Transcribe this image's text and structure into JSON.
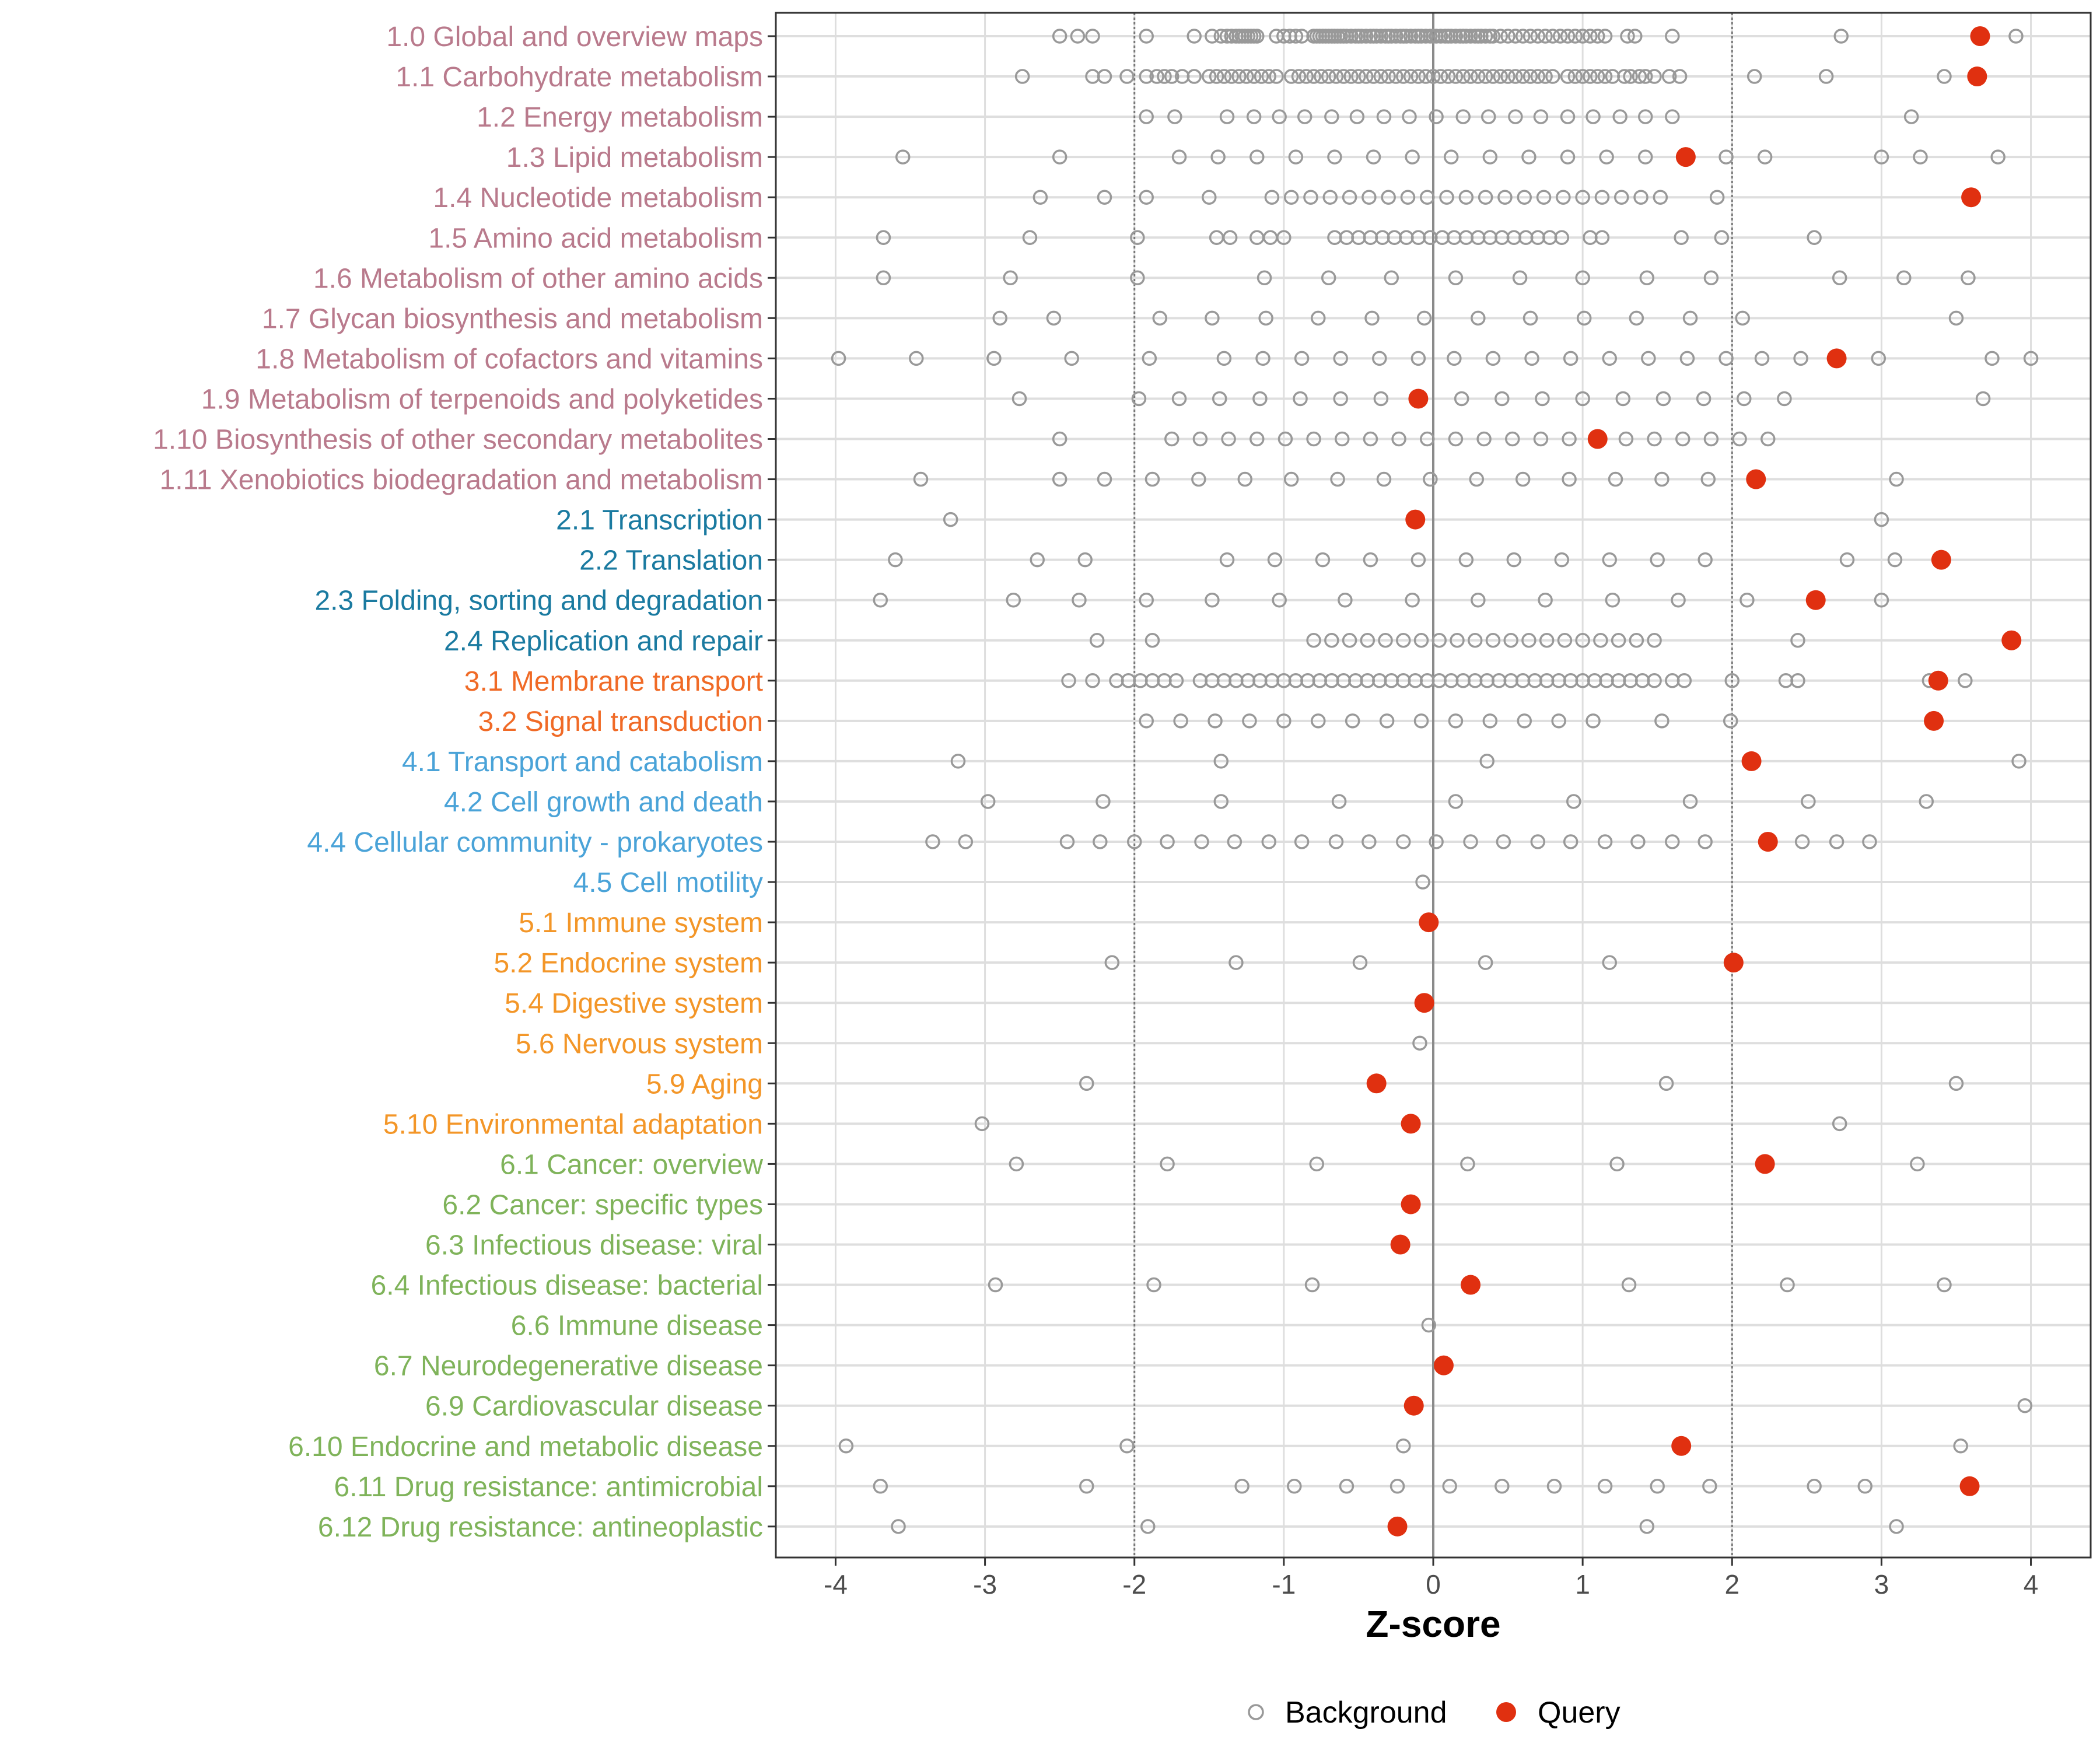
{
  "chart_data": {
    "type": "scatter",
    "xlabel": "Z-score",
    "xlim": [
      -4.4,
      4.4
    ],
    "x_ticks": [
      -4,
      -3,
      -2,
      -1,
      0,
      1,
      2,
      3,
      4
    ],
    "x_tick_labels": [
      "-4",
      "-3",
      "-2",
      "-1",
      "0",
      "1",
      "2",
      "3",
      "4"
    ],
    "reference_lines": {
      "zero": 0,
      "thresholds": [
        -2,
        2
      ]
    },
    "legend": {
      "position": "bottom",
      "entries": [
        "Background",
        "Query"
      ]
    },
    "colors": {
      "background_point": "#999999",
      "query_point": "#e03010",
      "grid": "#dedede",
      "metabolism": "#b97a8c",
      "genetic": "#1a7aa0",
      "environmental": "#f06a26",
      "cellular": "#4aa3d8",
      "organismal": "#f39628",
      "human_disease": "#7fb35a"
    },
    "categories": [
      {
        "label": "1.0 Global and overview maps",
        "group": "metabolism",
        "query": 3.66,
        "background": [
          -2.5,
          -2.38,
          -2.28,
          -1.92,
          -1.6,
          -1.48,
          -1.42,
          -1.38,
          -1.35,
          -1.32,
          -1.3,
          -1.28,
          -1.26,
          -1.24,
          -1.22,
          -1.2,
          -1.18,
          -1.05,
          -1.0,
          -0.96,
          -0.92,
          -0.88,
          -0.8,
          -0.78,
          -0.76,
          -0.74,
          -0.72,
          -0.7,
          -0.68,
          -0.66,
          -0.64,
          -0.62,
          -0.6,
          -0.58,
          -0.55,
          -0.52,
          -0.5,
          -0.48,
          -0.45,
          -0.42,
          -0.4,
          -0.38,
          -0.35,
          -0.32,
          -0.3,
          -0.28,
          -0.25,
          -0.22,
          -0.2,
          -0.18,
          -0.15,
          -0.12,
          -0.1,
          -0.08,
          -0.05,
          -0.02,
          0.0,
          0.02,
          0.05,
          0.08,
          0.1,
          0.12,
          0.15,
          0.18,
          0.2,
          0.22,
          0.25,
          0.28,
          0.3,
          0.32,
          0.35,
          0.38,
          0.4,
          0.45,
          0.5,
          0.55,
          0.6,
          0.65,
          0.7,
          0.75,
          0.8,
          0.85,
          0.9,
          0.95,
          1.0,
          1.05,
          1.1,
          1.15,
          1.3,
          1.35,
          1.6,
          2.73,
          3.9
        ]
      },
      {
        "label": "1.1 Carbohydrate metabolism",
        "group": "metabolism",
        "query": 3.64,
        "background": [
          -2.75,
          -2.28,
          -2.2,
          -2.05,
          -1.92,
          -1.85,
          -1.8,
          -1.75,
          -1.68,
          -1.6,
          -1.5,
          -1.45,
          -1.4,
          -1.35,
          -1.3,
          -1.25,
          -1.2,
          -1.15,
          -1.1,
          -1.05,
          -0.95,
          -0.9,
          -0.85,
          -0.8,
          -0.75,
          -0.7,
          -0.65,
          -0.6,
          -0.55,
          -0.5,
          -0.45,
          -0.4,
          -0.35,
          -0.3,
          -0.25,
          -0.2,
          -0.15,
          -0.1,
          -0.05,
          0.0,
          0.05,
          0.1,
          0.15,
          0.2,
          0.25,
          0.3,
          0.35,
          0.4,
          0.45,
          0.5,
          0.55,
          0.6,
          0.65,
          0.7,
          0.75,
          0.8,
          0.9,
          0.95,
          1.0,
          1.05,
          1.1,
          1.15,
          1.2,
          1.28,
          1.32,
          1.38,
          1.42,
          1.48,
          1.58,
          1.65,
          2.15,
          2.63,
          3.42
        ]
      },
      {
        "label": "1.2 Energy metabolism",
        "group": "metabolism",
        "query": null,
        "background": [
          -1.92,
          -1.73,
          -1.38,
          -1.2,
          -1.03,
          -0.86,
          -0.68,
          -0.51,
          -0.33,
          -0.16,
          0.02,
          0.2,
          0.37,
          0.55,
          0.72,
          0.9,
          1.07,
          1.25,
          1.42,
          1.6,
          3.2
        ]
      },
      {
        "label": "1.3 Lipid metabolism",
        "group": "metabolism",
        "query": 1.69,
        "background": [
          -3.55,
          -2.5,
          -1.7,
          -1.44,
          -1.18,
          -0.92,
          -0.66,
          -0.4,
          -0.14,
          0.12,
          0.38,
          0.64,
          0.9,
          1.16,
          1.42,
          1.96,
          2.22,
          3.0,
          3.26,
          3.78
        ]
      },
      {
        "label": "1.4 Nucleotide metabolism",
        "group": "metabolism",
        "query": 3.6,
        "background": [
          -2.63,
          -2.2,
          -1.92,
          -1.5,
          -1.08,
          -0.95,
          -0.82,
          -0.69,
          -0.56,
          -0.43,
          -0.3,
          -0.17,
          -0.04,
          0.09,
          0.22,
          0.35,
          0.48,
          0.61,
          0.74,
          0.87,
          1.0,
          1.13,
          1.26,
          1.39,
          1.52,
          1.9
        ]
      },
      {
        "label": "1.5 Amino acid metabolism",
        "group": "metabolism",
        "query": null,
        "background": [
          -3.68,
          -2.7,
          -1.98,
          -1.45,
          -1.36,
          -1.18,
          -1.09,
          -1.0,
          -0.66,
          -0.58,
          -0.5,
          -0.42,
          -0.34,
          -0.26,
          -0.18,
          -0.1,
          -0.02,
          0.06,
          0.14,
          0.22,
          0.3,
          0.38,
          0.46,
          0.54,
          0.62,
          0.7,
          0.78,
          0.86,
          1.05,
          1.13,
          1.66,
          1.93,
          2.55
        ]
      },
      {
        "label": "1.6 Metabolism of other amino acids",
        "group": "metabolism",
        "query": null,
        "background": [
          -3.68,
          -2.83,
          -1.98,
          -1.13,
          -0.7,
          -0.28,
          0.15,
          0.58,
          1.0,
          1.43,
          1.86,
          2.72,
          3.15,
          3.58
        ]
      },
      {
        "label": "1.7 Glycan biosynthesis and metabolism",
        "group": "metabolism",
        "query": null,
        "background": [
          -2.9,
          -2.54,
          -1.83,
          -1.48,
          -1.12,
          -0.77,
          -0.41,
          -0.06,
          0.3,
          0.65,
          1.01,
          1.36,
          1.72,
          2.07,
          3.5
        ]
      },
      {
        "label": "1.8 Metabolism of cofactors and vitamins",
        "group": "metabolism",
        "query": 2.7,
        "background": [
          -3.98,
          -3.46,
          -2.94,
          -2.42,
          -1.9,
          -1.4,
          -1.14,
          -0.88,
          -0.62,
          -0.36,
          -0.1,
          0.14,
          0.4,
          0.66,
          0.92,
          1.18,
          1.44,
          1.7,
          1.96,
          2.2,
          2.46,
          2.98,
          3.74,
          4.0
        ]
      },
      {
        "label": "1.9 Metabolism of terpenoids and polyketides",
        "group": "metabolism",
        "query": -0.1,
        "background": [
          -2.77,
          -1.97,
          -1.7,
          -1.43,
          -1.16,
          -0.89,
          -0.62,
          -0.35,
          0.19,
          0.46,
          0.73,
          1.0,
          1.27,
          1.54,
          1.81,
          2.08,
          2.35,
          3.68
        ]
      },
      {
        "label": "1.10 Biosynthesis of other secondary metabolites",
        "group": "metabolism",
        "query": 1.1,
        "background": [
          -2.5,
          -1.75,
          -1.56,
          -1.37,
          -1.18,
          -0.99,
          -0.8,
          -0.61,
          -0.42,
          -0.23,
          -0.04,
          0.15,
          0.34,
          0.53,
          0.72,
          0.91,
          1.29,
          1.48,
          1.67,
          1.86,
          2.05,
          2.24
        ]
      },
      {
        "label": "1.11 Xenobiotics biodegradation and metabolism",
        "group": "metabolism",
        "query": 2.16,
        "background": [
          -3.43,
          -2.5,
          -2.2,
          -1.88,
          -1.57,
          -1.26,
          -0.95,
          -0.64,
          -0.33,
          -0.02,
          0.29,
          0.6,
          0.91,
          1.22,
          1.53,
          1.84,
          3.1
        ]
      },
      {
        "label": "2.1 Transcription",
        "group": "genetic",
        "query": -0.12,
        "background": [
          -3.23,
          3.0
        ]
      },
      {
        "label": "2.2 Translation",
        "group": "genetic",
        "query": 3.4,
        "background": [
          -3.6,
          -2.65,
          -2.33,
          -1.38,
          -1.06,
          -0.74,
          -0.42,
          -0.1,
          0.22,
          0.54,
          0.86,
          1.18,
          1.5,
          1.82,
          2.77,
          3.09
        ]
      },
      {
        "label": "2.3 Folding, sorting and degradation",
        "group": "genetic",
        "query": 2.56,
        "background": [
          -3.7,
          -2.81,
          -2.37,
          -1.92,
          -1.48,
          -1.03,
          -0.59,
          -0.14,
          0.3,
          0.75,
          1.2,
          1.64,
          2.1,
          3.0
        ]
      },
      {
        "label": "2.4 Replication and repair",
        "group": "genetic",
        "query": 3.87,
        "background": [
          -2.25,
          -1.88,
          -0.8,
          -0.68,
          -0.56,
          -0.44,
          -0.32,
          -0.2,
          -0.08,
          0.04,
          0.16,
          0.28,
          0.4,
          0.52,
          0.64,
          0.76,
          0.88,
          1.0,
          1.12,
          1.24,
          1.36,
          1.48,
          2.44
        ]
      },
      {
        "label": "3.1 Membrane transport",
        "group": "environmental",
        "query": 3.38,
        "background": [
          -2.44,
          -2.28,
          -2.12,
          -2.04,
          -1.96,
          -1.88,
          -1.8,
          -1.72,
          -1.56,
          -1.48,
          -1.4,
          -1.32,
          -1.24,
          -1.16,
          -1.08,
          -1.0,
          -0.92,
          -0.84,
          -0.76,
          -0.68,
          -0.6,
          -0.52,
          -0.44,
          -0.36,
          -0.28,
          -0.2,
          -0.12,
          -0.04,
          0.04,
          0.12,
          0.2,
          0.28,
          0.36,
          0.44,
          0.52,
          0.6,
          0.68,
          0.76,
          0.84,
          0.92,
          1.0,
          1.08,
          1.16,
          1.24,
          1.32,
          1.4,
          1.48,
          1.6,
          1.68,
          2.0,
          2.36,
          2.44,
          3.32,
          3.56
        ]
      },
      {
        "label": "3.2 Signal transduction",
        "group": "environmental",
        "query": 3.35,
        "background": [
          -1.92,
          -1.69,
          -1.46,
          -1.23,
          -1.0,
          -0.77,
          -0.54,
          -0.31,
          -0.08,
          0.15,
          0.38,
          0.61,
          0.84,
          1.07,
          1.53,
          1.99
        ]
      },
      {
        "label": "4.1 Transport and catabolism",
        "group": "cellular",
        "query": 2.13,
        "background": [
          -3.18,
          -1.42,
          0.36,
          3.92
        ]
      },
      {
        "label": "4.2 Cell growth and death",
        "group": "cellular",
        "query": null,
        "background": [
          -2.98,
          -2.21,
          -1.42,
          -0.63,
          0.15,
          0.94,
          1.72,
          2.51,
          3.3
        ]
      },
      {
        "label": "4.4 Cellular community - prokaryotes",
        "group": "cellular",
        "query": 2.24,
        "background": [
          -3.35,
          -3.13,
          -2.45,
          -2.23,
          -2.0,
          -1.78,
          -1.55,
          -1.33,
          -1.1,
          -0.88,
          -0.65,
          -0.43,
          -0.2,
          0.02,
          0.25,
          0.47,
          0.7,
          0.92,
          1.15,
          1.37,
          1.6,
          1.82,
          2.47,
          2.7,
          2.92
        ]
      },
      {
        "label": "4.5 Cell motility",
        "group": "cellular",
        "query": null,
        "background": [
          -0.07
        ]
      },
      {
        "label": "5.1 Immune system",
        "group": "organismal",
        "query": -0.03,
        "background": []
      },
      {
        "label": "5.2 Endocrine system",
        "group": "organismal",
        "query": 2.01,
        "background": [
          -2.15,
          -1.32,
          -0.49,
          0.35,
          1.18,
          2.01
        ]
      },
      {
        "label": "5.4 Digestive system",
        "group": "organismal",
        "query": -0.06,
        "background": []
      },
      {
        "label": "5.6 Nervous system",
        "group": "organismal",
        "query": null,
        "background": [
          -0.09
        ]
      },
      {
        "label": "5.9 Aging",
        "group": "organismal",
        "query": -0.38,
        "background": [
          -2.32,
          1.56,
          3.5
        ]
      },
      {
        "label": "5.10 Environmental adaptation",
        "group": "organismal",
        "query": -0.15,
        "background": [
          -3.02,
          2.72
        ]
      },
      {
        "label": "6.1 Cancer: overview",
        "group": "human_disease",
        "query": 2.22,
        "background": [
          -2.79,
          -1.78,
          -0.78,
          0.23,
          1.23,
          3.24
        ]
      },
      {
        "label": "6.2 Cancer: specific types",
        "group": "human_disease",
        "query": -0.15,
        "background": []
      },
      {
        "label": "6.3 Infectious disease: viral",
        "group": "human_disease",
        "query": -0.22,
        "background": []
      },
      {
        "label": "6.4 Infectious disease: bacterial",
        "group": "human_disease",
        "query": 0.25,
        "background": [
          -2.93,
          -1.87,
          -0.81,
          1.31,
          2.37,
          3.42
        ]
      },
      {
        "label": "6.6 Immune disease",
        "group": "human_disease",
        "query": null,
        "background": [
          -0.03
        ]
      },
      {
        "label": "6.7 Neurodegenerative disease",
        "group": "human_disease",
        "query": 0.07,
        "background": []
      },
      {
        "label": "6.9 Cardiovascular disease",
        "group": "human_disease",
        "query": -0.13,
        "background": [
          3.96
        ]
      },
      {
        "label": "6.10 Endocrine and metabolic disease",
        "group": "human_disease",
        "query": 1.66,
        "background": [
          -3.93,
          -2.05,
          -0.2,
          3.53
        ]
      },
      {
        "label": "6.11 Drug resistance: antimicrobial",
        "group": "human_disease",
        "query": 3.59,
        "background": [
          -3.7,
          -2.32,
          -1.28,
          -0.93,
          -0.58,
          -0.24,
          0.11,
          0.46,
          0.81,
          1.15,
          1.5,
          1.85,
          2.55,
          2.89
        ]
      },
      {
        "label": "6.12 Drug resistance: antineoplastic",
        "group": "human_disease",
        "query": -0.24,
        "background": [
          -3.58,
          -1.91,
          1.43,
          3.1
        ]
      }
    ]
  }
}
